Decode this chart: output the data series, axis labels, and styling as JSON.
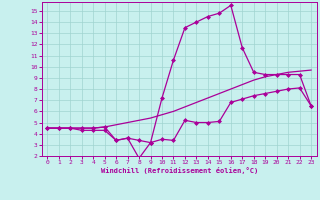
{
  "xlabel": "Windchill (Refroidissement éolien,°C)",
  "xlim": [
    -0.5,
    23.5
  ],
  "ylim": [
    2,
    15.8
  ],
  "yticks": [
    2,
    3,
    4,
    5,
    6,
    7,
    8,
    9,
    10,
    11,
    12,
    13,
    14,
    15
  ],
  "xticks": [
    0,
    1,
    2,
    3,
    4,
    5,
    6,
    7,
    8,
    9,
    10,
    11,
    12,
    13,
    14,
    15,
    16,
    17,
    18,
    19,
    20,
    21,
    22,
    23
  ],
  "bg_color": "#c8f0ee",
  "grid_color": "#a0d4d0",
  "line_color": "#aa0099",
  "line1_x": [
    0,
    1,
    2,
    3,
    4,
    5,
    6,
    7,
    8,
    9,
    10,
    11,
    12,
    13,
    14,
    15,
    16,
    17,
    18,
    19,
    20,
    21,
    22,
    23
  ],
  "line1_y": [
    4.5,
    4.5,
    4.5,
    4.5,
    4.5,
    4.6,
    4.8,
    5.0,
    5.2,
    5.4,
    5.7,
    6.0,
    6.4,
    6.8,
    7.2,
    7.6,
    8.0,
    8.4,
    8.8,
    9.1,
    9.3,
    9.5,
    9.6,
    9.7
  ],
  "line2_x": [
    0,
    1,
    2,
    3,
    4,
    5,
    6,
    7,
    8,
    9,
    10,
    11,
    12,
    13,
    14,
    15,
    16,
    17,
    18,
    19,
    20,
    21,
    22,
    23
  ],
  "line2_y": [
    4.5,
    4.5,
    4.5,
    4.3,
    4.3,
    4.3,
    3.4,
    3.6,
    3.4,
    3.2,
    3.5,
    3.4,
    5.2,
    5.0,
    5.0,
    5.1,
    6.8,
    7.1,
    7.4,
    7.6,
    7.8,
    8.0,
    8.1,
    6.5
  ],
  "line3_x": [
    0,
    1,
    2,
    3,
    4,
    5,
    6,
    7,
    8,
    9,
    10,
    11,
    12,
    13,
    14,
    15,
    16,
    17,
    18,
    19,
    20,
    21,
    22,
    23
  ],
  "line3_y": [
    4.5,
    4.5,
    4.5,
    4.5,
    4.5,
    4.6,
    3.4,
    3.6,
    1.8,
    3.2,
    7.2,
    10.6,
    13.5,
    14.0,
    14.5,
    14.8,
    15.5,
    11.7,
    9.5,
    9.3,
    9.3,
    9.3,
    9.3,
    6.5
  ]
}
